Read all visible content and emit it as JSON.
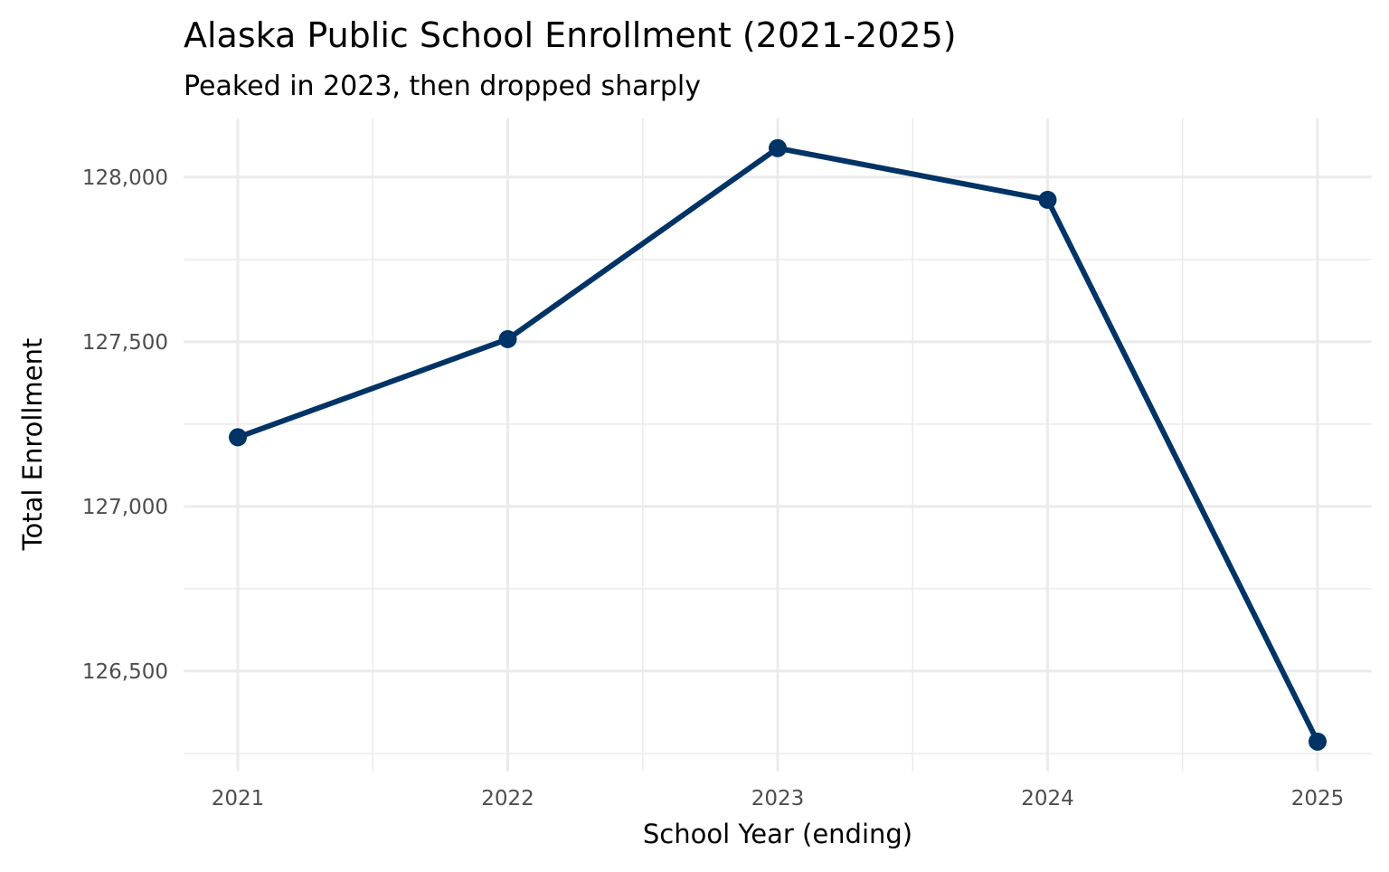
{
  "chart_data": {
    "type": "line",
    "title": "Alaska Public School Enrollment (2021-2025)",
    "subtitle": "Peaked in 2023, then dropped sharply",
    "xlabel": "School Year (ending)",
    "ylabel": "Total Enrollment",
    "x": [
      2021,
      2022,
      2023,
      2024,
      2025
    ],
    "values": [
      127210,
      127508,
      128088,
      127931,
      126286
    ],
    "xlim": [
      2020.8,
      2025.2
    ],
    "ylim": [
      126196,
      128178
    ],
    "x_ticks": [
      2021,
      2022,
      2023,
      2024,
      2025
    ],
    "x_tick_labels": [
      "2021",
      "2022",
      "2023",
      "2024",
      "2025"
    ],
    "y_ticks": [
      126500,
      127000,
      127500,
      128000
    ],
    "y_tick_labels": [
      "126,500",
      "127,000",
      "127,500",
      "128,000"
    ],
    "grid": true,
    "line_color": "#003366"
  }
}
